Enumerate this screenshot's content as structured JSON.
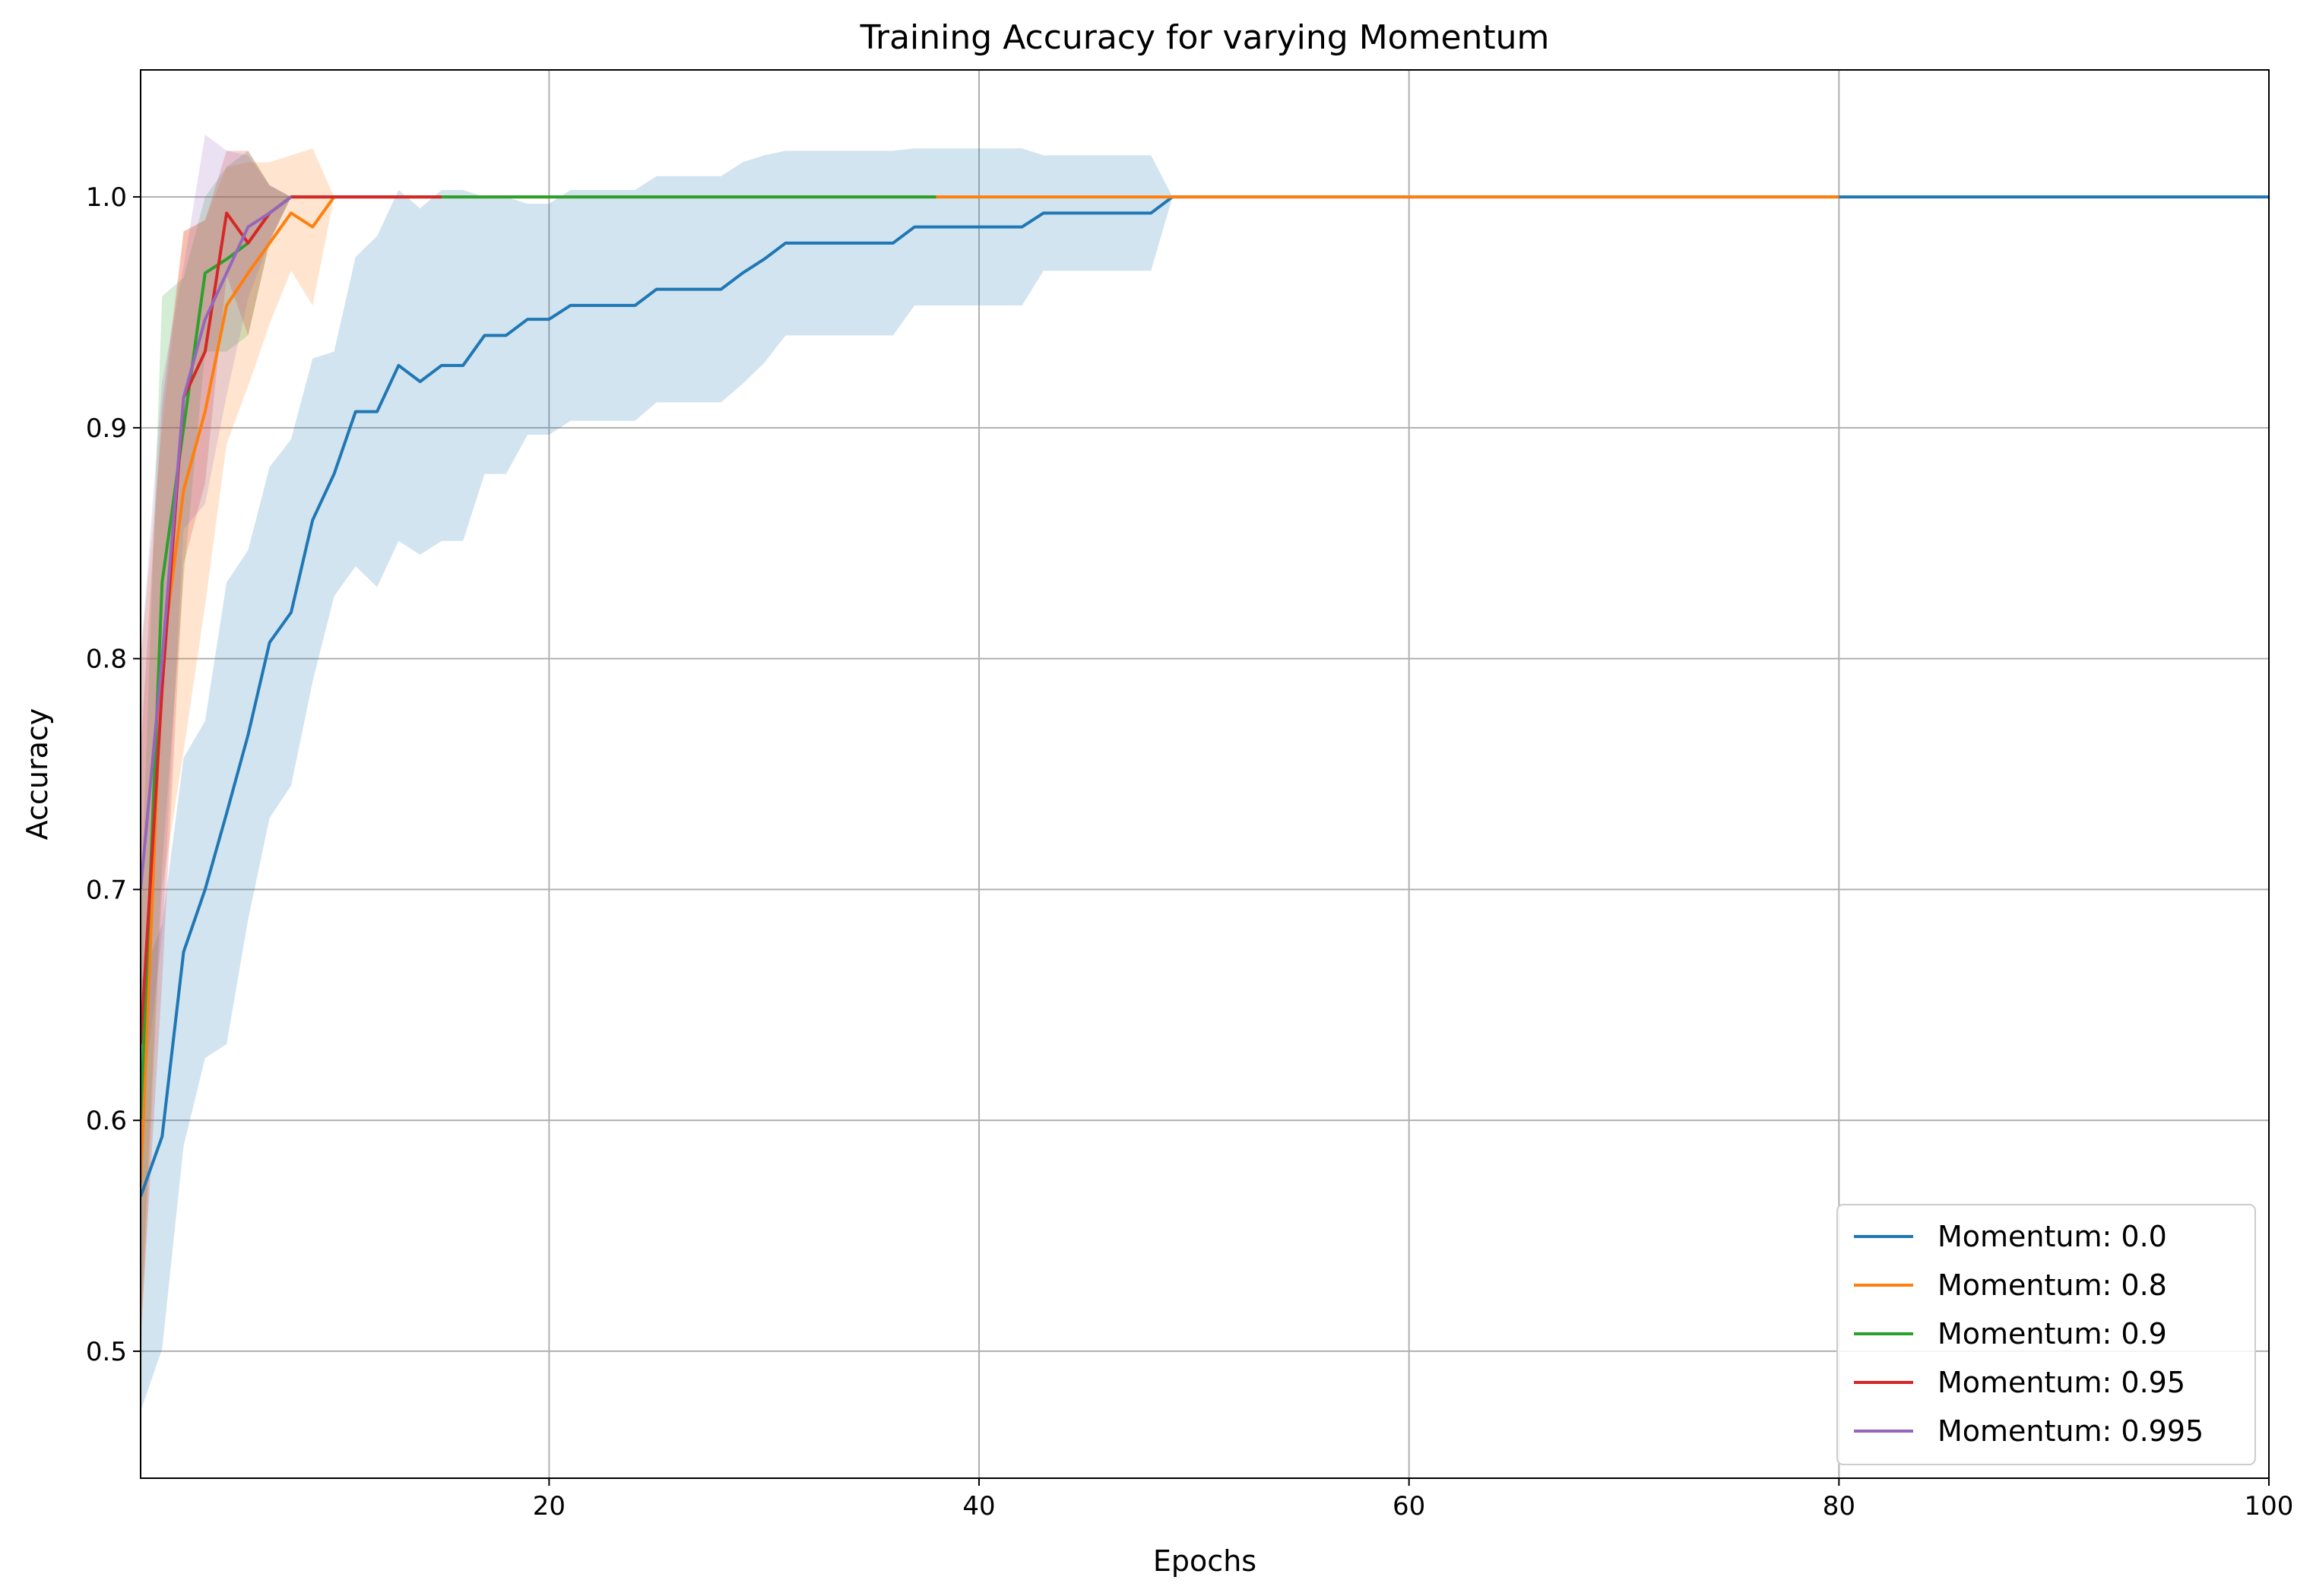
{
  "chart_data": {
    "type": "line",
    "title": "Training Accuracy for varying Momentum",
    "xlabel": "Epochs",
    "ylabel": "Accuracy",
    "xlim": [
      1,
      100
    ],
    "ylim": [
      0.445,
      1.055
    ],
    "xticks": [
      20,
      40,
      60,
      80,
      100
    ],
    "yticks": [
      0.5,
      0.6,
      0.7,
      0.8,
      0.9,
      1.0
    ],
    "grid": true,
    "legend_position": "lower-right",
    "series": [
      {
        "name": "Momentum: 0.0",
        "color": "#1f77b4",
        "points": [
          [
            1,
            0.567
          ],
          [
            2,
            0.593
          ],
          [
            3,
            0.673
          ],
          [
            4,
            0.7
          ],
          [
            5,
            0.733
          ],
          [
            6,
            0.767
          ],
          [
            7,
            0.807
          ],
          [
            8,
            0.82
          ],
          [
            9,
            0.86
          ],
          [
            10,
            0.88
          ],
          [
            11,
            0.907
          ],
          [
            12,
            0.907
          ],
          [
            13,
            0.927
          ],
          [
            14,
            0.92
          ],
          [
            15,
            0.927
          ],
          [
            16,
            0.927
          ],
          [
            17,
            0.94
          ],
          [
            18,
            0.94
          ],
          [
            19,
            0.947
          ],
          [
            20,
            0.947
          ],
          [
            21,
            0.953
          ],
          [
            22,
            0.953
          ],
          [
            23,
            0.953
          ],
          [
            24,
            0.953
          ],
          [
            25,
            0.96
          ],
          [
            26,
            0.96
          ],
          [
            27,
            0.96
          ],
          [
            28,
            0.96
          ],
          [
            29,
            0.967
          ],
          [
            30,
            0.973
          ],
          [
            31,
            0.98
          ],
          [
            32,
            0.98
          ],
          [
            33,
            0.98
          ],
          [
            34,
            0.98
          ],
          [
            35,
            0.98
          ],
          [
            36,
            0.98
          ],
          [
            37,
            0.987
          ],
          [
            38,
            0.987
          ],
          [
            39,
            0.987
          ],
          [
            40,
            0.987
          ],
          [
            41,
            0.987
          ],
          [
            42,
            0.987
          ],
          [
            43,
            0.993
          ],
          [
            44,
            0.993
          ],
          [
            45,
            0.993
          ],
          [
            46,
            0.993
          ],
          [
            47,
            0.993
          ],
          [
            48,
            0.993
          ],
          [
            49,
            1.0
          ],
          [
            100,
            1.0
          ]
        ],
        "upper": [
          [
            1,
            0.66
          ],
          [
            2,
            0.685
          ],
          [
            3,
            0.757
          ],
          [
            4,
            0.773
          ],
          [
            5,
            0.833
          ],
          [
            6,
            0.847
          ],
          [
            7,
            0.883
          ],
          [
            8,
            0.895
          ],
          [
            9,
            0.93
          ],
          [
            10,
            0.933
          ],
          [
            11,
            0.974
          ],
          [
            12,
            0.983
          ],
          [
            13,
            1.003
          ],
          [
            14,
            0.995
          ],
          [
            15,
            1.003
          ],
          [
            16,
            1.003
          ],
          [
            17,
            1.0
          ],
          [
            18,
            1.0
          ],
          [
            19,
            0.997
          ],
          [
            20,
            0.997
          ],
          [
            21,
            1.003
          ],
          [
            22,
            1.003
          ],
          [
            23,
            1.003
          ],
          [
            24,
            1.003
          ],
          [
            25,
            1.009
          ],
          [
            26,
            1.009
          ],
          [
            27,
            1.009
          ],
          [
            28,
            1.009
          ],
          [
            29,
            1.015
          ],
          [
            30,
            1.018
          ],
          [
            31,
            1.02
          ],
          [
            32,
            1.02
          ],
          [
            33,
            1.02
          ],
          [
            34,
            1.02
          ],
          [
            35,
            1.02
          ],
          [
            36,
            1.02
          ],
          [
            37,
            1.021
          ],
          [
            38,
            1.021
          ],
          [
            39,
            1.021
          ],
          [
            40,
            1.021
          ],
          [
            41,
            1.021
          ],
          [
            42,
            1.021
          ],
          [
            43,
            1.018
          ],
          [
            44,
            1.018
          ],
          [
            45,
            1.018
          ],
          [
            46,
            1.018
          ],
          [
            47,
            1.018
          ],
          [
            48,
            1.018
          ],
          [
            49,
            1.0
          ]
        ],
        "lower": [
          [
            1,
            0.474
          ],
          [
            2,
            0.501
          ],
          [
            3,
            0.589
          ],
          [
            4,
            0.627
          ],
          [
            5,
            0.633
          ],
          [
            6,
            0.687
          ],
          [
            7,
            0.731
          ],
          [
            8,
            0.745
          ],
          [
            9,
            0.79
          ],
          [
            10,
            0.827
          ],
          [
            11,
            0.84
          ],
          [
            12,
            0.831
          ],
          [
            13,
            0.851
          ],
          [
            14,
            0.845
          ],
          [
            15,
            0.851
          ],
          [
            16,
            0.851
          ],
          [
            17,
            0.88
          ],
          [
            18,
            0.88
          ],
          [
            19,
            0.897
          ],
          [
            20,
            0.897
          ],
          [
            21,
            0.903
          ],
          [
            22,
            0.903
          ],
          [
            23,
            0.903
          ],
          [
            24,
            0.903
          ],
          [
            25,
            0.911
          ],
          [
            26,
            0.911
          ],
          [
            27,
            0.911
          ],
          [
            28,
            0.911
          ],
          [
            29,
            0.919
          ],
          [
            30,
            0.928
          ],
          [
            31,
            0.94
          ],
          [
            32,
            0.94
          ],
          [
            33,
            0.94
          ],
          [
            34,
            0.94
          ],
          [
            35,
            0.94
          ],
          [
            36,
            0.94
          ],
          [
            37,
            0.953
          ],
          [
            38,
            0.953
          ],
          [
            39,
            0.953
          ],
          [
            40,
            0.953
          ],
          [
            41,
            0.953
          ],
          [
            42,
            0.953
          ],
          [
            43,
            0.968
          ],
          [
            44,
            0.968
          ],
          [
            45,
            0.968
          ],
          [
            46,
            0.968
          ],
          [
            47,
            0.968
          ],
          [
            48,
            0.968
          ],
          [
            49,
            1.0
          ]
        ]
      },
      {
        "name": "Momentum: 0.8",
        "color": "#ff7f0e",
        "points": [
          [
            1,
            0.573
          ],
          [
            2,
            0.8
          ],
          [
            3,
            0.873
          ],
          [
            4,
            0.907
          ],
          [
            5,
            0.953
          ],
          [
            6,
            0.967
          ],
          [
            7,
            0.98
          ],
          [
            8,
            0.993
          ],
          [
            9,
            0.987
          ],
          [
            10,
            1.0
          ],
          [
            80,
            1.0
          ]
        ],
        "upper": [
          [
            1,
            0.8
          ],
          [
            2,
            0.9
          ],
          [
            3,
            0.985
          ],
          [
            4,
            0.99
          ],
          [
            5,
            1.013
          ],
          [
            6,
            1.015
          ],
          [
            7,
            1.015
          ],
          [
            8,
            1.018
          ],
          [
            9,
            1.021
          ],
          [
            10,
            1.0
          ]
        ],
        "lower": [
          [
            1,
            0.497
          ],
          [
            2,
            0.7
          ],
          [
            3,
            0.76
          ],
          [
            4,
            0.823
          ],
          [
            5,
            0.893
          ],
          [
            6,
            0.918
          ],
          [
            7,
            0.945
          ],
          [
            8,
            0.968
          ],
          [
            9,
            0.953
          ],
          [
            10,
            1.0
          ]
        ]
      },
      {
        "name": "Momentum: 0.9",
        "color": "#2ca02c",
        "points": [
          [
            1,
            0.6
          ],
          [
            2,
            0.833
          ],
          [
            3,
            0.9
          ],
          [
            4,
            0.967
          ],
          [
            5,
            0.973
          ],
          [
            6,
            0.98
          ],
          [
            7,
            0.993
          ],
          [
            8,
            1.0
          ],
          [
            38,
            1.0
          ]
        ],
        "upper": [
          [
            1,
            0.69
          ],
          [
            2,
            0.957
          ],
          [
            3,
            0.965
          ],
          [
            4,
            1.0
          ],
          [
            5,
            1.013
          ],
          [
            6,
            1.02
          ],
          [
            7,
            1.005
          ],
          [
            8,
            1.0
          ],
          [
            15,
            1.0
          ]
        ],
        "lower": [
          [
            1,
            0.51
          ],
          [
            2,
            0.71
          ],
          [
            3,
            0.835
          ],
          [
            4,
            0.933
          ],
          [
            5,
            0.933
          ],
          [
            6,
            0.94
          ],
          [
            7,
            0.98
          ],
          [
            8,
            1.0
          ],
          [
            15,
            1.0
          ]
        ]
      },
      {
        "name": "Momentum: 0.95",
        "color": "#d62728",
        "points": [
          [
            1,
            0.633
          ],
          [
            2,
            0.787
          ],
          [
            3,
            0.913
          ],
          [
            4,
            0.933
          ],
          [
            5,
            0.993
          ],
          [
            6,
            0.98
          ],
          [
            7,
            0.993
          ],
          [
            8,
            1.0
          ],
          [
            15,
            1.0
          ]
        ],
        "upper": [
          [
            1,
            0.76
          ],
          [
            2,
            0.91
          ],
          [
            3,
            0.985
          ],
          [
            4,
            0.99
          ],
          [
            5,
            1.02
          ],
          [
            6,
            1.02
          ],
          [
            7,
            1.005
          ],
          [
            8,
            1.0
          ],
          [
            15,
            1.0
          ]
        ],
        "lower": [
          [
            1,
            0.506
          ],
          [
            2,
            0.66
          ],
          [
            3,
            0.841
          ],
          [
            4,
            0.876
          ],
          [
            5,
            0.966
          ],
          [
            6,
            0.94
          ],
          [
            7,
            0.981
          ],
          [
            8,
            1.0
          ],
          [
            15,
            1.0
          ]
        ]
      },
      {
        "name": "Momentum: 0.995",
        "color": "#9467bd",
        "points": [
          [
            1,
            0.7
          ],
          [
            2,
            0.8
          ],
          [
            3,
            0.913
          ],
          [
            4,
            0.947
          ],
          [
            5,
            0.967
          ],
          [
            6,
            0.987
          ],
          [
            7,
            0.993
          ],
          [
            8,
            1.0
          ]
        ],
        "upper": [
          [
            1,
            0.8
          ],
          [
            2,
            0.92
          ],
          [
            3,
            0.97
          ],
          [
            4,
            1.027
          ],
          [
            5,
            1.02
          ],
          [
            6,
            1.018
          ],
          [
            7,
            1.005
          ],
          [
            8,
            1.0
          ]
        ],
        "lower": [
          [
            1,
            0.6
          ],
          [
            2,
            0.68
          ],
          [
            3,
            0.856
          ],
          [
            4,
            0.867
          ],
          [
            5,
            0.914
          ],
          [
            6,
            0.956
          ],
          [
            7,
            0.981
          ],
          [
            8,
            1.0
          ]
        ]
      }
    ]
  }
}
